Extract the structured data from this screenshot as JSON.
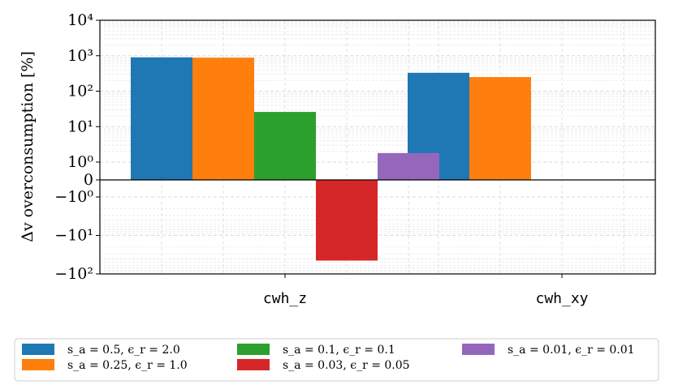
{
  "chart_data": {
    "type": "bar",
    "yscale": "symlog",
    "ylabel": "Δv overconsumption [%]",
    "xlabel": "",
    "title": "",
    "categories": [
      "cwh_z",
      "cwh_xy"
    ],
    "series": [
      {
        "name": "s_a = 0.5, ϵ_r = 2.0",
        "color": "#1f77b4",
        "values": [
          900,
          330
        ]
      },
      {
        "name": "s_a = 0.25, ϵ_r = 1.0",
        "color": "#ff7f0e",
        "values": [
          880,
          250
        ]
      },
      {
        "name": "s_a = 0.1, ϵ_r = 0.1",
        "color": "#2ca02c",
        "values": [
          26,
          null
        ]
      },
      {
        "name": "s_a = 0.03, ϵ_r = 0.05",
        "color": "#d62728",
        "values": [
          -45,
          null
        ]
      },
      {
        "name": "s_a = 0.01, ϵ_r = 0.01",
        "color": "#9467bd",
        "values": [
          1.8,
          null
        ]
      }
    ],
    "ytick_labels": [
      "10⁴",
      "10³",
      "10²",
      "10¹",
      "10⁰",
      "0",
      "−10⁰",
      "−10¹",
      "−10²"
    ],
    "ytick_values": [
      10000,
      1000,
      100,
      10,
      1,
      0,
      -1,
      -10,
      -100
    ],
    "ylim": [
      -100,
      10000
    ],
    "grid": true,
    "legend_position": "bottom"
  }
}
